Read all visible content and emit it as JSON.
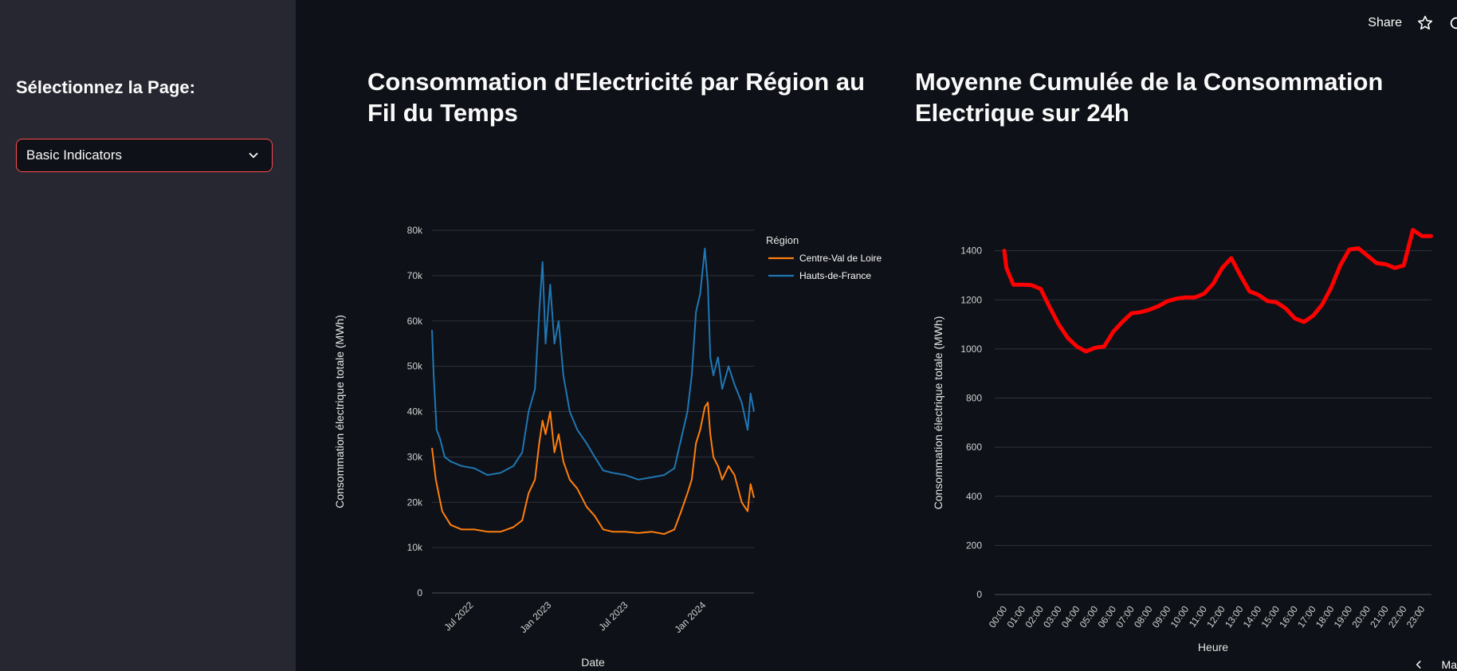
{
  "sidebar": {
    "label": "Sélectionnez la Page:",
    "select": {
      "value": "Basic Indicators"
    }
  },
  "header": {
    "share_label": "Share",
    "icons": [
      "star-icon",
      "settings-icon"
    ],
    "accent": "#ff4b4b"
  },
  "main": {
    "left_title": "Consommation d'Electricité par Région au Fil du Temps",
    "right_title": "Moyenne Cumulée de la Consommation Electrique sur 24h",
    "footer_nav_text": "Ma"
  },
  "chart_data": [
    {
      "type": "line",
      "title": "",
      "xlabel": "Date",
      "ylabel": "Consommation électrique totale (MWh)",
      "xlim": [
        "2022-04-01",
        "2024-04-30"
      ],
      "ylim": [
        0,
        80000
      ],
      "y_ticks": [
        0,
        10000,
        20000,
        30000,
        40000,
        50000,
        60000,
        70000,
        80000
      ],
      "y_tick_labels": [
        "0",
        "10k",
        "20k",
        "30k",
        "40k",
        "50k",
        "60k",
        "70k",
        "80k"
      ],
      "x_ticks": [
        "2022-07-01",
        "2023-01-01",
        "2023-07-01",
        "2024-01-01"
      ],
      "x_tick_labels": [
        "Jul 2022",
        "Jan 2023",
        "Jul 2023",
        "Jan 2024"
      ],
      "grid": true,
      "legend": {
        "title": "Région",
        "placement": "top-right"
      },
      "series": [
        {
          "name": "Centre-Val de Loire",
          "color": "#ff7f0e",
          "x": [
            "2022-04-01",
            "2022-04-10",
            "2022-04-25",
            "2022-05-15",
            "2022-06-10",
            "2022-07-10",
            "2022-08-10",
            "2022-09-10",
            "2022-10-10",
            "2022-10-31",
            "2022-11-15",
            "2022-11-30",
            "2022-12-10",
            "2022-12-18",
            "2022-12-25",
            "2023-01-05",
            "2023-01-15",
            "2023-01-25",
            "2023-02-05",
            "2023-02-20",
            "2023-03-10",
            "2023-04-01",
            "2023-04-20",
            "2023-05-10",
            "2023-06-01",
            "2023-07-01",
            "2023-08-01",
            "2023-09-01",
            "2023-10-01",
            "2023-10-25",
            "2023-11-10",
            "2023-11-25",
            "2023-12-05",
            "2023-12-15",
            "2023-12-25",
            "2024-01-05",
            "2024-01-12",
            "2024-01-18",
            "2024-01-25",
            "2024-02-05",
            "2024-02-15",
            "2024-03-01",
            "2024-03-15",
            "2024-04-01",
            "2024-04-15",
            "2024-04-22",
            "2024-04-30"
          ],
          "values": [
            32000,
            25000,
            18000,
            15000,
            14000,
            14000,
            13500,
            13500,
            14500,
            16000,
            22000,
            25000,
            33000,
            38000,
            35000,
            40000,
            31000,
            35000,
            29000,
            25000,
            23000,
            19000,
            17000,
            14000,
            13500,
            13500,
            13200,
            13500,
            13000,
            14000,
            18000,
            22000,
            25000,
            33000,
            36000,
            41000,
            42000,
            35000,
            30000,
            28000,
            25000,
            28000,
            26000,
            20000,
            18000,
            24000,
            21000
          ]
        },
        {
          "name": "Hauts-de-France",
          "color": "#1f77b4",
          "x": [
            "2022-04-01",
            "2022-04-05",
            "2022-04-12",
            "2022-04-20",
            "2022-05-01",
            "2022-05-15",
            "2022-06-10",
            "2022-07-10",
            "2022-08-10",
            "2022-09-10",
            "2022-10-10",
            "2022-10-31",
            "2022-11-15",
            "2022-11-30",
            "2022-12-10",
            "2022-12-18",
            "2022-12-25",
            "2023-01-05",
            "2023-01-15",
            "2023-01-25",
            "2023-02-05",
            "2023-02-20",
            "2023-03-10",
            "2023-04-01",
            "2023-04-20",
            "2023-05-10",
            "2023-06-01",
            "2023-07-01",
            "2023-08-01",
            "2023-09-01",
            "2023-10-01",
            "2023-10-25",
            "2023-11-10",
            "2023-11-25",
            "2023-12-05",
            "2023-12-15",
            "2023-12-25",
            "2024-01-05",
            "2024-01-12",
            "2024-01-18",
            "2024-01-25",
            "2024-02-05",
            "2024-02-15",
            "2024-03-01",
            "2024-03-15",
            "2024-04-01",
            "2024-04-15",
            "2024-04-22",
            "2024-04-30"
          ],
          "values": [
            58000,
            48000,
            36000,
            34000,
            30000,
            29000,
            28000,
            27500,
            26000,
            26500,
            28000,
            31000,
            40000,
            45000,
            62000,
            73000,
            55000,
            68000,
            55000,
            60000,
            48000,
            40000,
            36000,
            33000,
            30000,
            27000,
            26500,
            26000,
            25000,
            25500,
            26000,
            27500,
            34000,
            40000,
            48000,
            62000,
            66000,
            76000,
            68000,
            52000,
            48000,
            52000,
            45000,
            50000,
            46000,
            42000,
            36000,
            44000,
            40000
          ]
        }
      ]
    },
    {
      "type": "line",
      "title": "",
      "xlabel": "Heure",
      "ylabel": "Consommation électrique totale (MWh)",
      "ylim": [
        0,
        1480
      ],
      "y_ticks": [
        0,
        200,
        400,
        600,
        800,
        1000,
        1200,
        1400
      ],
      "categories": [
        "00:00",
        "01:00",
        "02:00",
        "03:00",
        "04:00",
        "05:00",
        "06:00",
        "07:00",
        "08:00",
        "09:00",
        "10:00",
        "11:00",
        "12:00",
        "13:00",
        "14:00",
        "15:00",
        "16:00",
        "17:00",
        "18:00",
        "19:00",
        "20:00",
        "21:00",
        "22:00",
        "23:00"
      ],
      "grid": true,
      "series": [
        {
          "color": "#ff0000",
          "x": [
            0,
            0.12,
            0.5,
            1,
            1.5,
            2,
            2.5,
            3,
            3.5,
            4,
            4.5,
            5,
            5.5,
            6,
            6.5,
            7,
            7.5,
            8,
            8.5,
            9,
            9.5,
            10,
            10.5,
            11,
            11.5,
            12,
            12.5,
            13,
            13.5,
            14,
            14.5,
            15,
            15.5,
            16,
            16.5,
            17,
            17.5,
            18,
            18.5,
            19,
            19.5,
            20,
            20.5,
            21,
            21.5,
            22,
            22.5,
            23,
            23.5
          ],
          "values": [
            1400,
            1330,
            1262,
            1262,
            1260,
            1245,
            1170,
            1100,
            1045,
            1010,
            990,
            1005,
            1010,
            1070,
            1110,
            1145,
            1150,
            1160,
            1175,
            1195,
            1205,
            1210,
            1210,
            1225,
            1265,
            1330,
            1370,
            1300,
            1235,
            1220,
            1195,
            1190,
            1165,
            1125,
            1110,
            1135,
            1180,
            1250,
            1340,
            1405,
            1410,
            1380,
            1350,
            1345,
            1330,
            1340,
            1485,
            1460,
            1460
          ]
        }
      ]
    }
  ]
}
